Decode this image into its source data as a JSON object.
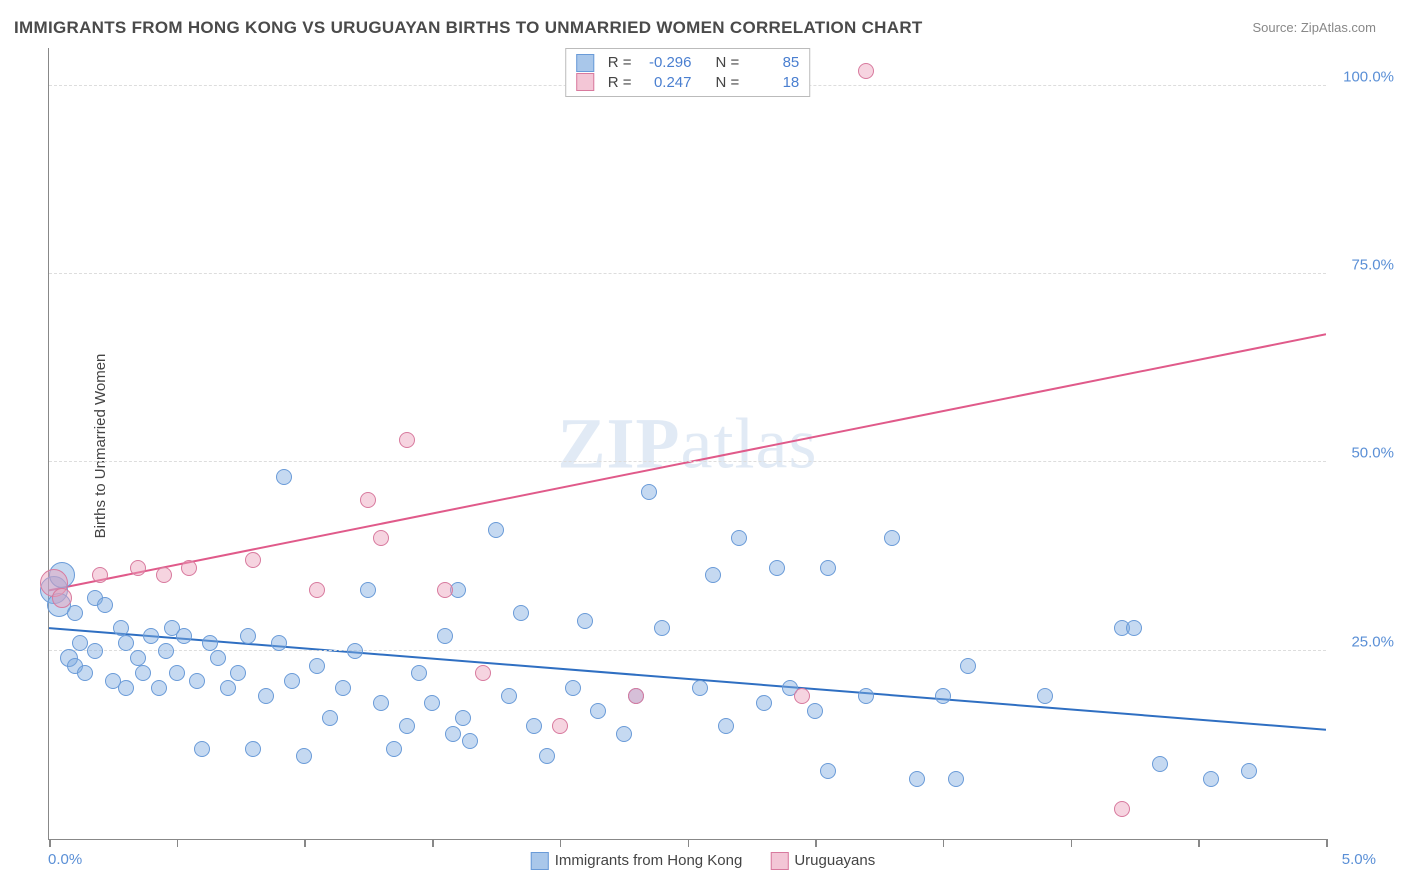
{
  "title": "IMMIGRANTS FROM HONG KONG VS URUGUAYAN BIRTHS TO UNMARRIED WOMEN CORRELATION CHART",
  "source_prefix": "Source: ",
  "source_name": "ZipAtlas.com",
  "ylabel": "Births to Unmarried Women",
  "watermark_bold": "ZIP",
  "watermark_rest": "atlas",
  "chart": {
    "type": "scatter",
    "background_color": "#ffffff",
    "grid_color": "#dddddd",
    "grid_dash": true,
    "axis_color": "#888888",
    "xlim": [
      0.0,
      5.0
    ],
    "ylim": [
      0.0,
      105.0
    ],
    "xtick_positions": [
      0.0,
      0.5,
      1.0,
      1.5,
      2.0,
      2.5,
      3.0,
      3.5,
      4.0,
      4.5,
      5.0
    ],
    "ytick_positions": [
      25.0,
      50.0,
      75.0,
      100.0
    ],
    "ytick_labels": [
      "25.0%",
      "50.0%",
      "75.0%",
      "100.0%"
    ],
    "xaxis_min_label": "0.0%",
    "xaxis_max_label": "5.0%",
    "label_color": "#5a8fd6",
    "label_fontsize": 15,
    "title_fontsize": 17,
    "title_color": "#4a4a4a",
    "marker_radius": 8,
    "marker_border_width": 1,
    "trendline_width": 2
  },
  "series": [
    {
      "name": "Immigrants from Hong Kong",
      "fill_color": "rgba(126,170,223,0.45)",
      "stroke_color": "#6a9bd8",
      "swatch_fill": "#a9c7ea",
      "swatch_border": "#6a9bd8",
      "trend": {
        "y_at_xmin": 28.0,
        "y_at_xmax": 14.5,
        "color": "#2f6fc2"
      },
      "R": "-0.296",
      "N": "85",
      "points": [
        {
          "x": 0.02,
          "y": 33,
          "r": 14
        },
        {
          "x": 0.05,
          "y": 35,
          "r": 13
        },
        {
          "x": 0.04,
          "y": 31,
          "r": 12
        },
        {
          "x": 0.08,
          "y": 24,
          "r": 9
        },
        {
          "x": 0.1,
          "y": 30,
          "r": 8
        },
        {
          "x": 0.1,
          "y": 23,
          "r": 8
        },
        {
          "x": 0.12,
          "y": 26,
          "r": 8
        },
        {
          "x": 0.14,
          "y": 22,
          "r": 8
        },
        {
          "x": 0.18,
          "y": 32,
          "r": 8
        },
        {
          "x": 0.18,
          "y": 25,
          "r": 8
        },
        {
          "x": 0.22,
          "y": 31,
          "r": 8
        },
        {
          "x": 0.25,
          "y": 21,
          "r": 8
        },
        {
          "x": 0.28,
          "y": 28,
          "r": 8
        },
        {
          "x": 0.3,
          "y": 20,
          "r": 8
        },
        {
          "x": 0.3,
          "y": 26,
          "r": 8
        },
        {
          "x": 0.35,
          "y": 24,
          "r": 8
        },
        {
          "x": 0.37,
          "y": 22,
          "r": 8
        },
        {
          "x": 0.4,
          "y": 27,
          "r": 8
        },
        {
          "x": 0.43,
          "y": 20,
          "r": 8
        },
        {
          "x": 0.46,
          "y": 25,
          "r": 8
        },
        {
          "x": 0.48,
          "y": 28,
          "r": 8
        },
        {
          "x": 0.5,
          "y": 22,
          "r": 8
        },
        {
          "x": 0.53,
          "y": 27,
          "r": 8
        },
        {
          "x": 0.58,
          "y": 21,
          "r": 8
        },
        {
          "x": 0.6,
          "y": 12,
          "r": 8
        },
        {
          "x": 0.63,
          "y": 26,
          "r": 8
        },
        {
          "x": 0.66,
          "y": 24,
          "r": 8
        },
        {
          "x": 0.7,
          "y": 20,
          "r": 8
        },
        {
          "x": 0.74,
          "y": 22,
          "r": 8
        },
        {
          "x": 0.78,
          "y": 27,
          "r": 8
        },
        {
          "x": 0.8,
          "y": 12,
          "r": 8
        },
        {
          "x": 0.85,
          "y": 19,
          "r": 8
        },
        {
          "x": 0.9,
          "y": 26,
          "r": 8
        },
        {
          "x": 0.92,
          "y": 48,
          "r": 8
        },
        {
          "x": 0.95,
          "y": 21,
          "r": 8
        },
        {
          "x": 1.0,
          "y": 11,
          "r": 8
        },
        {
          "x": 1.05,
          "y": 23,
          "r": 8
        },
        {
          "x": 1.1,
          "y": 16,
          "r": 8
        },
        {
          "x": 1.15,
          "y": 20,
          "r": 8
        },
        {
          "x": 1.2,
          "y": 25,
          "r": 8
        },
        {
          "x": 1.25,
          "y": 33,
          "r": 8
        },
        {
          "x": 1.3,
          "y": 18,
          "r": 8
        },
        {
          "x": 1.35,
          "y": 12,
          "r": 8
        },
        {
          "x": 1.4,
          "y": 15,
          "r": 8
        },
        {
          "x": 1.45,
          "y": 22,
          "r": 8
        },
        {
          "x": 1.5,
          "y": 18,
          "r": 8
        },
        {
          "x": 1.55,
          "y": 27,
          "r": 8
        },
        {
          "x": 1.58,
          "y": 14,
          "r": 8
        },
        {
          "x": 1.6,
          "y": 33,
          "r": 8
        },
        {
          "x": 1.62,
          "y": 16,
          "r": 8
        },
        {
          "x": 1.65,
          "y": 13,
          "r": 8
        },
        {
          "x": 1.75,
          "y": 41,
          "r": 8
        },
        {
          "x": 1.8,
          "y": 19,
          "r": 8
        },
        {
          "x": 1.85,
          "y": 30,
          "r": 8
        },
        {
          "x": 1.9,
          "y": 15,
          "r": 8
        },
        {
          "x": 1.95,
          "y": 11,
          "r": 8
        },
        {
          "x": 2.05,
          "y": 20,
          "r": 8
        },
        {
          "x": 2.1,
          "y": 29,
          "r": 8
        },
        {
          "x": 2.15,
          "y": 17,
          "r": 8
        },
        {
          "x": 2.25,
          "y": 14,
          "r": 8
        },
        {
          "x": 2.3,
          "y": 19,
          "r": 8
        },
        {
          "x": 2.35,
          "y": 46,
          "r": 8
        },
        {
          "x": 2.4,
          "y": 28,
          "r": 8
        },
        {
          "x": 2.55,
          "y": 20,
          "r": 8
        },
        {
          "x": 2.6,
          "y": 35,
          "r": 8
        },
        {
          "x": 2.65,
          "y": 15,
          "r": 8
        },
        {
          "x": 2.7,
          "y": 40,
          "r": 8
        },
        {
          "x": 2.8,
          "y": 18,
          "r": 8
        },
        {
          "x": 2.85,
          "y": 36,
          "r": 8
        },
        {
          "x": 2.9,
          "y": 20,
          "r": 8
        },
        {
          "x": 3.0,
          "y": 17,
          "r": 8
        },
        {
          "x": 3.05,
          "y": 36,
          "r": 8
        },
        {
          "x": 3.05,
          "y": 9,
          "r": 8
        },
        {
          "x": 3.2,
          "y": 19,
          "r": 8
        },
        {
          "x": 3.3,
          "y": 40,
          "r": 8
        },
        {
          "x": 3.4,
          "y": 8,
          "r": 8
        },
        {
          "x": 3.5,
          "y": 19,
          "r": 8
        },
        {
          "x": 3.55,
          "y": 8,
          "r": 8
        },
        {
          "x": 3.6,
          "y": 23,
          "r": 8
        },
        {
          "x": 3.9,
          "y": 19,
          "r": 8
        },
        {
          "x": 4.2,
          "y": 28,
          "r": 8
        },
        {
          "x": 4.25,
          "y": 28,
          "r": 8
        },
        {
          "x": 4.35,
          "y": 10,
          "r": 8
        },
        {
          "x": 4.55,
          "y": 8,
          "r": 8
        },
        {
          "x": 4.7,
          "y": 9,
          "r": 8
        }
      ]
    },
    {
      "name": "Uruguayans",
      "fill_color": "rgba(236,160,186,0.45)",
      "stroke_color": "#d87a9e",
      "swatch_fill": "#f3c6d6",
      "swatch_border": "#d87a9e",
      "trend": {
        "y_at_xmin": 33.0,
        "y_at_xmax": 67.0,
        "color": "#e05a8a"
      },
      "R": "0.247",
      "N": "18",
      "points": [
        {
          "x": 0.02,
          "y": 34,
          "r": 14
        },
        {
          "x": 0.05,
          "y": 32,
          "r": 10
        },
        {
          "x": 0.2,
          "y": 35,
          "r": 8
        },
        {
          "x": 0.35,
          "y": 36,
          "r": 8
        },
        {
          "x": 0.55,
          "y": 36,
          "r": 8
        },
        {
          "x": 0.8,
          "y": 37,
          "r": 8
        },
        {
          "x": 1.05,
          "y": 33,
          "r": 8
        },
        {
          "x": 1.25,
          "y": 45,
          "r": 8
        },
        {
          "x": 1.3,
          "y": 40,
          "r": 8
        },
        {
          "x": 1.4,
          "y": 53,
          "r": 8
        },
        {
          "x": 1.55,
          "y": 33,
          "r": 8
        },
        {
          "x": 1.7,
          "y": 22,
          "r": 8
        },
        {
          "x": 2.0,
          "y": 15,
          "r": 8
        },
        {
          "x": 2.3,
          "y": 19,
          "r": 8
        },
        {
          "x": 2.95,
          "y": 19,
          "r": 8
        },
        {
          "x": 3.2,
          "y": 102,
          "r": 8
        },
        {
          "x": 4.2,
          "y": 4,
          "r": 8
        },
        {
          "x": 0.45,
          "y": 35,
          "r": 8
        }
      ]
    }
  ],
  "top_legend": {
    "r_label": "R =",
    "n_label": "N ="
  }
}
